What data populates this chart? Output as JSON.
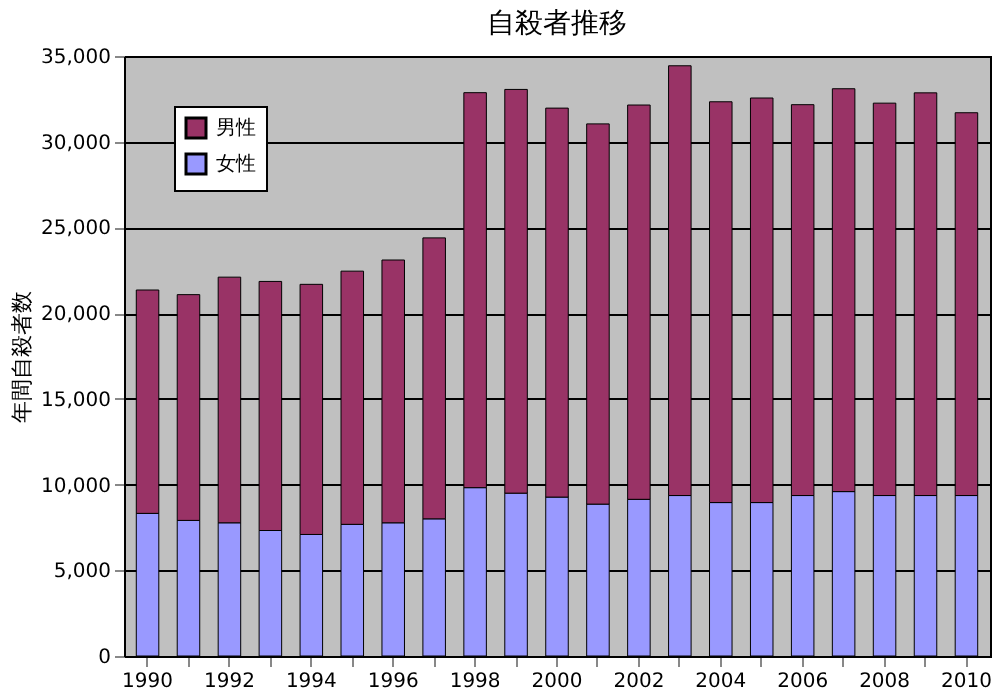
{
  "chart_data": {
    "type": "bar",
    "title": "自殺者推移",
    "ylabel": "年間自殺者数",
    "stacked": true,
    "categories": [
      "1990",
      null,
      "1992",
      null,
      "1994",
      null,
      "1996",
      null,
      "1998",
      null,
      "2000",
      null,
      "2002",
      null,
      "2004",
      null,
      "2006",
      null,
      "2008",
      null,
      "2010"
    ],
    "series": [
      {
        "name": "女性",
        "color": "#9999ff",
        "values": [
          8320,
          7910,
          7770,
          7320,
          7090,
          7680,
          7770,
          8000,
          9820,
          9500,
          9270,
          8860,
          9140,
          9360,
          8950,
          8950,
          9360,
          9590,
          9360,
          9360,
          9360
        ]
      },
      {
        "name": "男性",
        "color": "#993366",
        "values": [
          13030,
          13170,
          14330,
          14530,
          14590,
          14770,
          15330,
          16390,
          23040,
          23550,
          22690,
          22180,
          23000,
          25070,
          23380,
          23600,
          22800,
          23500,
          22890,
          23490,
          22330
        ]
      }
    ],
    "ylim": [
      0,
      35000
    ],
    "yticks": [
      0,
      {
        "value": 5000,
        "label": "5,000"
      },
      {
        "value": 10000,
        "label": "10,000"
      },
      {
        "value": 15000,
        "label": "15,000"
      },
      {
        "value": 20000,
        "label": "20,000"
      },
      {
        "value": 25000,
        "label": "25,000"
      },
      {
        "value": 30000,
        "label": "30,000"
      },
      {
        "value": 35000,
        "label": "35,000"
      }
    ],
    "grid": "y",
    "legend": "top left"
  }
}
